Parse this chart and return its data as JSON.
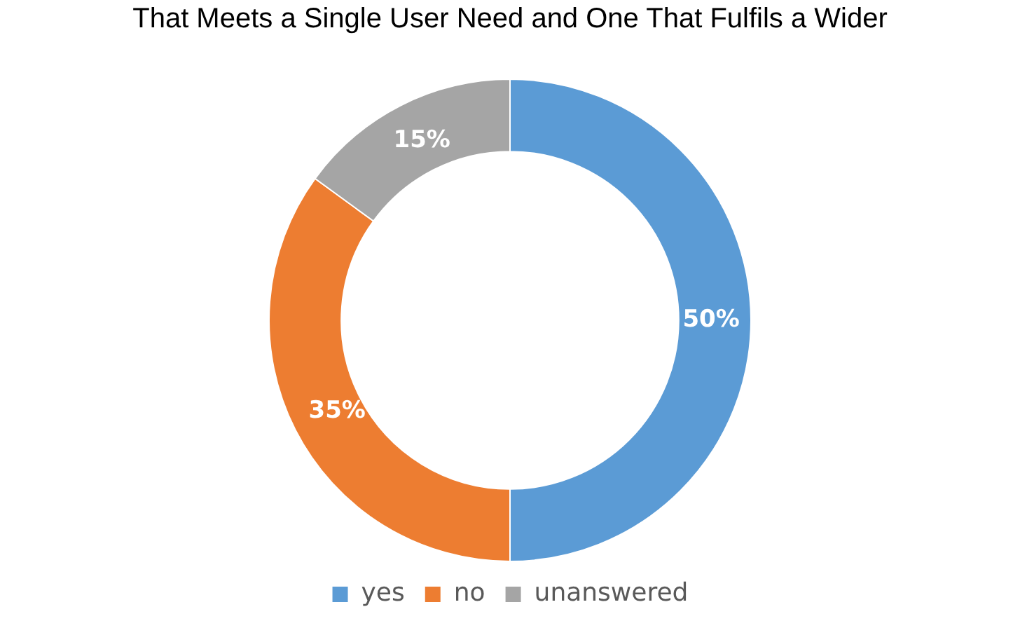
{
  "chart_data": {
    "type": "donut",
    "title": "That Meets a Single User Need and One That Fulfils a Wider",
    "categories": [
      "yes",
      "no",
      "unanswered"
    ],
    "values": [
      50,
      35,
      15
    ],
    "colors": [
      "#5b9bd5",
      "#ed7d31",
      "#a5a5a5"
    ],
    "value_labels": [
      "50%",
      "35%",
      "15%"
    ],
    "legend": "bottom"
  }
}
